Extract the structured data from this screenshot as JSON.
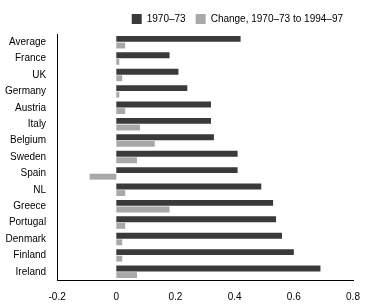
{
  "chart_data": {
    "type": "bar",
    "orientation": "horizontal",
    "categories": [
      "Average",
      "France",
      "UK",
      "Germany",
      "Austria",
      "Italy",
      "Belgium",
      "Sweden",
      "Spain",
      "NL",
      "Greece",
      "Portugal",
      "Denmark",
      "Finland",
      "Ireland"
    ],
    "series": [
      {
        "name": "1970–73",
        "color": "#3a3a3a",
        "values": [
          0.42,
          0.18,
          0.21,
          0.24,
          0.32,
          0.32,
          0.33,
          0.41,
          0.41,
          0.49,
          0.53,
          0.54,
          0.56,
          0.6,
          0.69
        ]
      },
      {
        "name": "Change, 1970–73 to 1994–97",
        "color": "#a8a8a8",
        "values": [
          0.03,
          0.01,
          0.02,
          0.01,
          0.03,
          0.08,
          0.13,
          0.07,
          -0.09,
          0.03,
          0.18,
          0.03,
          0.02,
          0.02,
          0.07
        ]
      }
    ],
    "xlim": [
      -0.2,
      0.8
    ],
    "xticks": [
      -0.2,
      0,
      0.2,
      0.4,
      0.6,
      0.8
    ],
    "grid": false,
    "legend": "top-right"
  }
}
